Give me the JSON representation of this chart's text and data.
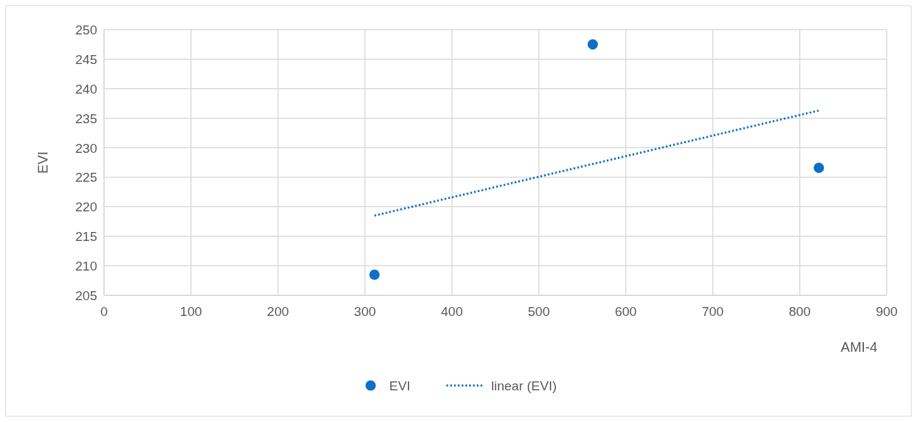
{
  "chart_data": {
    "type": "scatter",
    "xlabel": "AMI-4",
    "ylabel": "EVI",
    "xlim": [
      0,
      900
    ],
    "xticks": [
      0,
      100,
      200,
      300,
      400,
      500,
      600,
      700,
      800,
      900
    ],
    "ylim": [
      205,
      250
    ],
    "yticks": [
      205,
      210,
      215,
      220,
      225,
      230,
      235,
      240,
      245,
      250
    ],
    "grid": true,
    "legend": "bottom",
    "series": [
      {
        "name": "EVI",
        "marker": "circle",
        "color": "#0f6fc6",
        "x": [
          311,
          562,
          822
        ],
        "values": [
          208.5,
          247.5,
          226.6
        ]
      },
      {
        "name": "linear (EVI)",
        "type": "line",
        "line_style": "dotted",
        "color": "#0f6fc6",
        "x": [
          311,
          822
        ],
        "values": [
          218.5,
          236.3
        ]
      }
    ]
  }
}
